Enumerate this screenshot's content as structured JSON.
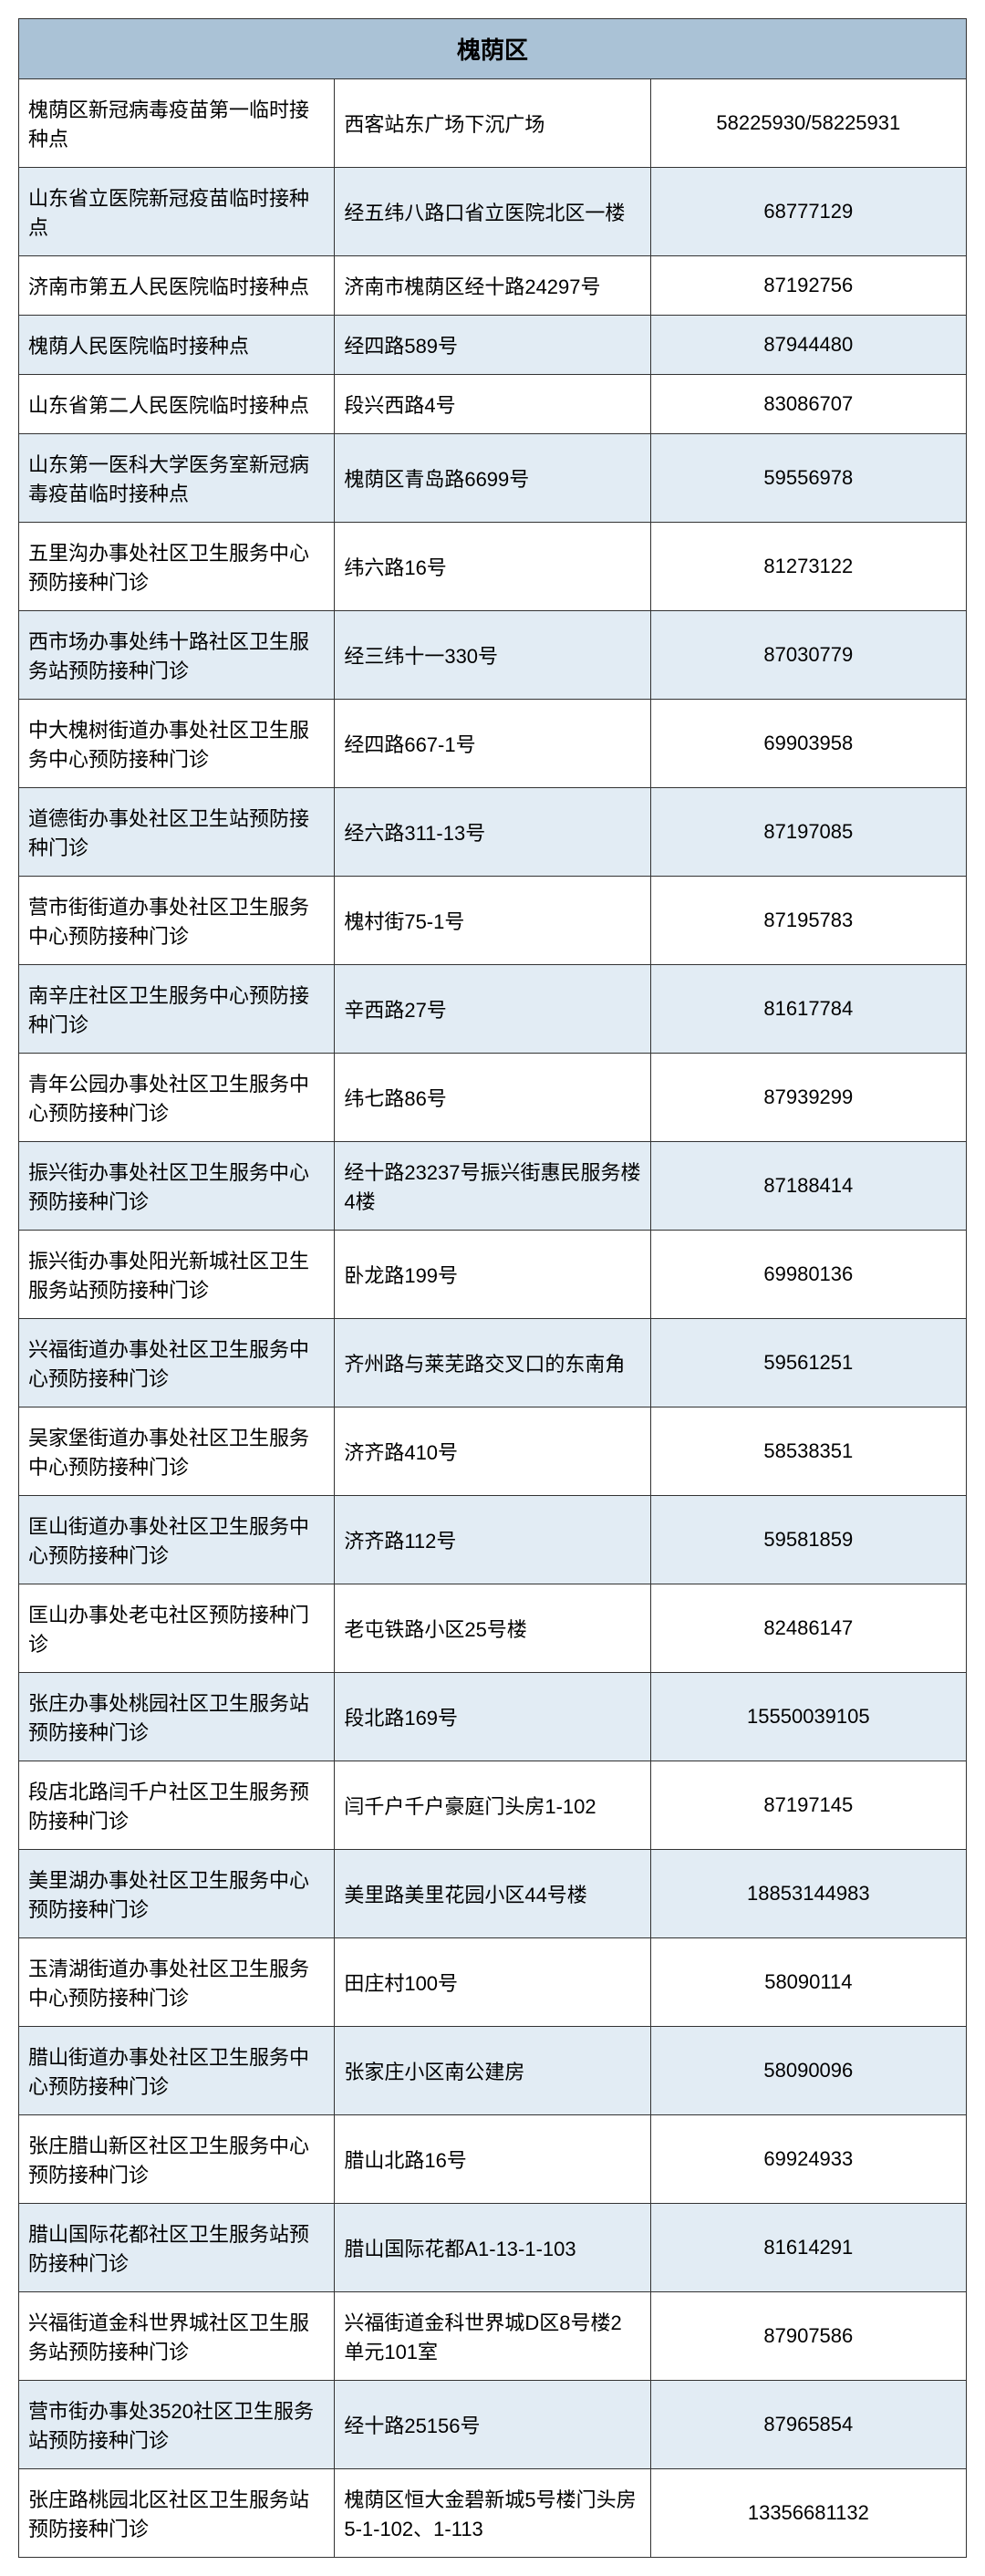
{
  "table": {
    "title": "槐荫区",
    "header_bg": "#aac2d6",
    "alt_row_bg": "#e2ecf4",
    "normal_row_bg": "#ffffff",
    "border_color": "#333333",
    "text_color": "#000000",
    "columns": [
      {
        "key": "name",
        "width": "44%",
        "align": "left"
      },
      {
        "key": "address",
        "width": "34%",
        "align": "left"
      },
      {
        "key": "phone",
        "width": "22%",
        "align": "center"
      }
    ],
    "rows": [
      {
        "name": "槐荫区新冠病毒疫苗第一临时接种点",
        "address": "西客站东广场下沉广场",
        "phone": "58225930/58225931",
        "alt": false
      },
      {
        "name": "山东省立医院新冠疫苗临时接种点",
        "address": "经五纬八路口省立医院北区一楼",
        "phone": "68777129",
        "alt": true
      },
      {
        "name": "济南市第五人民医院临时接种点",
        "address": "济南市槐荫区经十路24297号",
        "phone": "87192756",
        "alt": false
      },
      {
        "name": "槐荫人民医院临时接种点",
        "address": "经四路589号",
        "phone": "87944480",
        "alt": true
      },
      {
        "name": "山东省第二人民医院临时接种点",
        "address": "段兴西路4号",
        "phone": "83086707",
        "alt": false
      },
      {
        "name": "山东第一医科大学医务室新冠病毒疫苗临时接种点",
        "address": "槐荫区青岛路6699号",
        "phone": "59556978",
        "alt": true
      },
      {
        "name": "五里沟办事处社区卫生服务中心预防接种门诊",
        "address": "纬六路16号",
        "phone": "81273122",
        "alt": false
      },
      {
        "name": "西市场办事处纬十路社区卫生服务站预防接种门诊",
        "address": "经三纬十一330号",
        "phone": "87030779",
        "alt": true
      },
      {
        "name": "中大槐树街道办事处社区卫生服务中心预防接种门诊",
        "address": "经四路667-1号",
        "phone": "69903958",
        "alt": false
      },
      {
        "name": "道德街办事处社区卫生站预防接种门诊",
        "address": "经六路311-13号",
        "phone": "87197085",
        "alt": true
      },
      {
        "name": "营市街街道办事处社区卫生服务中心预防接种门诊",
        "address": "槐村街75-1号",
        "phone": "87195783",
        "alt": false
      },
      {
        "name": "南辛庄社区卫生服务中心预防接种门诊",
        "address": "辛西路27号",
        "phone": "81617784",
        "alt": true
      },
      {
        "name": "青年公园办事处社区卫生服务中心预防接种门诊",
        "address": "纬七路86号",
        "phone": "87939299",
        "alt": false
      },
      {
        "name": "振兴街办事处社区卫生服务中心预防接种门诊",
        "address": "经十路23237号振兴街惠民服务楼4楼",
        "phone": "87188414",
        "alt": true
      },
      {
        "name": "振兴街办事处阳光新城社区卫生服务站预防接种门诊",
        "address": "卧龙路199号",
        "phone": "69980136",
        "alt": false
      },
      {
        "name": "兴福街道办事处社区卫生服务中心预防接种门诊",
        "address": "齐州路与莱芜路交叉口的东南角",
        "phone": "59561251",
        "alt": true
      },
      {
        "name": "吴家堡街道办事处社区卫生服务中心预防接种门诊",
        "address": "济齐路410号",
        "phone": "58538351",
        "alt": false
      },
      {
        "name": "匡山街道办事处社区卫生服务中心预防接种门诊",
        "address": "济齐路112号",
        "phone": "59581859",
        "alt": true
      },
      {
        "name": "匡山办事处老屯社区预防接种门诊",
        "address": "老屯铁路小区25号楼",
        "phone": "82486147",
        "alt": false
      },
      {
        "name": "张庄办事处桃园社区卫生服务站预防接种门诊",
        "address": "段北路169号",
        "phone": "15550039105",
        "alt": true
      },
      {
        "name": "段店北路闫千户社区卫生服务预防接种门诊",
        "address": "闫千户千户豪庭门头房1-102",
        "phone": "87197145",
        "alt": false
      },
      {
        "name": "美里湖办事处社区卫生服务中心预防接种门诊",
        "address": "美里路美里花园小区44号楼",
        "phone": "18853144983",
        "alt": true
      },
      {
        "name": "玉清湖街道办事处社区卫生服务中心预防接种门诊",
        "address": "田庄村100号",
        "phone": "58090114",
        "alt": false
      },
      {
        "name": "腊山街道办事处社区卫生服务中心预防接种门诊",
        "address": "张家庄小区南公建房",
        "phone": "58090096",
        "alt": true
      },
      {
        "name": "张庄腊山新区社区卫生服务中心预防接种门诊",
        "address": "腊山北路16号",
        "phone": "69924933",
        "alt": false
      },
      {
        "name": "腊山国际花都社区卫生服务站预防接种门诊",
        "address": "腊山国际花都A1-13-1-103",
        "phone": "81614291",
        "alt": true
      },
      {
        "name": "兴福街道金科世界城社区卫生服务站预防接种门诊",
        "address": "兴福街道金科世界城D区8号楼2单元101室",
        "phone": "87907586",
        "alt": false
      },
      {
        "name": "营市街办事处3520社区卫生服务站预防接种门诊",
        "address": "经十路25156号",
        "phone": "87965854",
        "alt": true
      },
      {
        "name": "张庄路桃园北区社区卫生服务站预防接种门诊",
        "address": "槐荫区恒大金碧新城5号楼门头房5-1-102、1-113",
        "phone": "13356681132",
        "alt": false
      }
    ]
  }
}
